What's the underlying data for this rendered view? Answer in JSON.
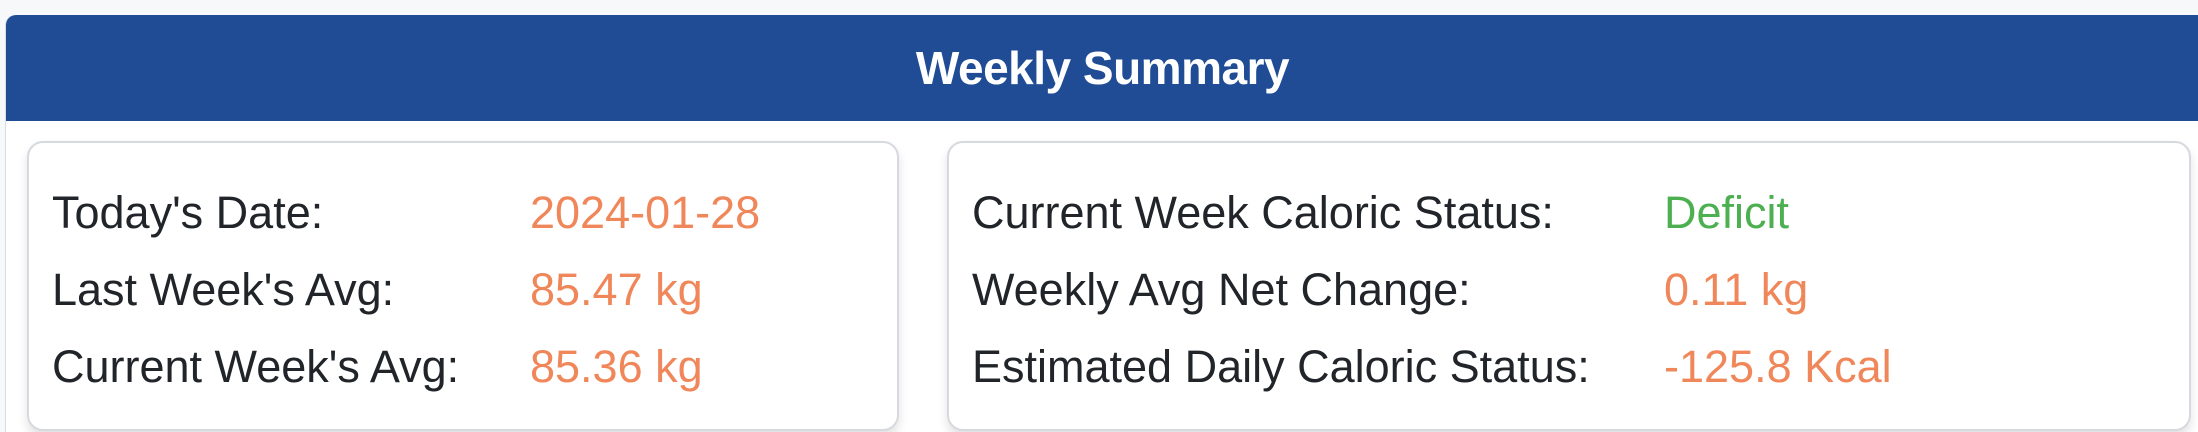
{
  "summary": {
    "title": "Weekly Summary",
    "left_card": {
      "rows": [
        {
          "label": "Today's Date:",
          "value": "2024-01-28"
        },
        {
          "label": "Last Week's Avg:",
          "value": "85.47 kg"
        },
        {
          "label": "Current Week's Avg:",
          "value": "85.36 kg"
        }
      ]
    },
    "right_card": {
      "rows": [
        {
          "label": "Current Week Caloric Status:",
          "value": "Deficit"
        },
        {
          "label": "Weekly Avg Net Change:",
          "value": "0.11 kg"
        },
        {
          "label": "Estimated Daily Caloric Status:",
          "value": "-125.8 Kcal"
        }
      ]
    }
  },
  "colors": {
    "header_bg": "#1f4c95",
    "value_orange": "#f0875a",
    "value_green": "#4caf50",
    "label_text": "#212529"
  }
}
